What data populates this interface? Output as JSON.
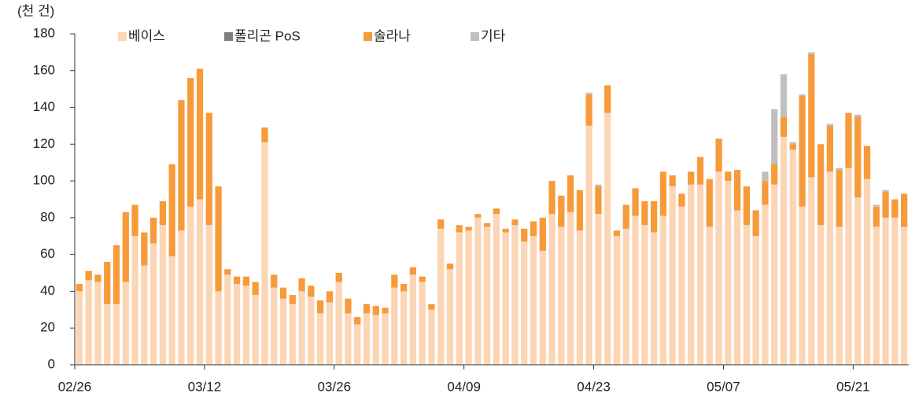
{
  "chart_data": {
    "type": "stacked_bar",
    "y_axis_label": "(천 건)",
    "categories": [
      "02/26",
      null,
      null,
      null,
      null,
      null,
      null,
      null,
      null,
      null,
      null,
      null,
      null,
      null,
      "03/12",
      null,
      null,
      null,
      null,
      null,
      null,
      null,
      null,
      null,
      null,
      null,
      null,
      null,
      "03/26",
      null,
      null,
      null,
      null,
      null,
      null,
      null,
      null,
      null,
      null,
      null,
      null,
      null,
      "04/09",
      null,
      null,
      null,
      null,
      null,
      null,
      null,
      null,
      null,
      null,
      null,
      null,
      null,
      "04/23",
      null,
      null,
      null,
      null,
      null,
      null,
      null,
      null,
      null,
      null,
      null,
      null,
      null,
      "05/07",
      null,
      null,
      null,
      null,
      null,
      null,
      null,
      null,
      null,
      null,
      null,
      null,
      null,
      "05/21",
      null,
      null,
      null,
      null,
      null
    ],
    "series": [
      {
        "name": "베이스",
        "color": "#fcd5b5",
        "values": [
          40,
          46,
          45,
          33,
          33,
          45,
          70,
          54,
          66,
          76,
          59,
          73,
          86,
          90,
          76,
          40,
          49,
          44,
          43,
          38,
          121,
          42,
          36,
          33,
          40,
          37,
          28,
          34,
          45,
          28,
          22,
          28,
          27,
          28,
          42,
          40,
          49,
          45,
          30,
          74,
          52,
          72,
          73,
          80,
          75,
          82,
          72,
          76,
          67,
          70,
          62,
          82,
          75,
          83,
          73,
          130,
          82,
          137,
          70,
          74,
          81,
          76,
          72,
          81,
          97,
          86,
          98,
          98,
          75,
          105,
          100,
          84,
          76,
          70,
          87,
          98,
          124,
          117,
          86,
          102,
          76,
          105,
          75,
          107,
          91,
          101,
          75,
          80,
          80,
          75
        ]
      },
      {
        "name": "폴리곤 PoS",
        "color": "#7f7f7f",
        "values": [
          0,
          0,
          0,
          0,
          0,
          0,
          0,
          0,
          0,
          0,
          0,
          0,
          0,
          0,
          0,
          0,
          0,
          0,
          0,
          0,
          0,
          0,
          0,
          0,
          0,
          0,
          0,
          0,
          0,
          0,
          0,
          0,
          0,
          0,
          0,
          0,
          0,
          0,
          0,
          0,
          0,
          0,
          0,
          0,
          0,
          0,
          0,
          0,
          0,
          0,
          0,
          0,
          0,
          0,
          0,
          0,
          0,
          0,
          0,
          0,
          0,
          0,
          0,
          0,
          0,
          0,
          0,
          0,
          0,
          0,
          0,
          0,
          0,
          0,
          0,
          0,
          0,
          0,
          0,
          0,
          0,
          0,
          0,
          0,
          0,
          0,
          0,
          0,
          0,
          0
        ]
      },
      {
        "name": "솔라나",
        "color": "#f79a3a",
        "values": [
          4,
          5,
          4,
          23,
          32,
          38,
          17,
          18,
          14,
          13,
          50,
          71,
          70,
          71,
          61,
          57,
          3,
          4,
          5,
          7,
          8,
          7,
          6,
          5,
          7,
          6,
          7,
          6,
          5,
          8,
          4,
          5,
          5,
          3,
          7,
          4,
          4,
          3,
          3,
          5,
          3,
          4,
          2,
          2,
          2,
          3,
          2,
          3,
          7,
          8,
          18,
          18,
          17,
          20,
          22,
          17,
          15,
          15,
          3,
          13,
          15,
          13,
          17,
          24,
          6,
          7,
          7,
          15,
          26,
          18,
          5,
          22,
          21,
          14,
          13,
          11,
          11,
          3,
          60,
          67,
          44,
          25,
          31,
          30,
          44,
          18,
          11,
          14,
          10,
          18
        ]
      },
      {
        "name": "기타",
        "color": "#bfbfbf",
        "values": [
          0,
          0,
          0,
          0,
          0,
          0,
          0,
          0,
          0,
          0,
          0,
          0,
          0,
          0,
          0,
          0,
          0,
          0,
          0,
          0,
          0,
          0,
          0,
          0,
          0,
          0,
          0,
          0,
          0,
          0,
          0,
          0,
          0,
          0,
          0,
          0,
          0,
          0,
          0,
          0,
          0,
          0,
          0,
          0,
          0,
          0,
          0,
          0,
          0,
          0,
          0,
          0,
          0,
          0,
          0,
          1,
          1,
          0,
          0,
          0,
          0,
          0,
          0,
          0,
          0,
          0,
          0,
          0,
          0,
          0,
          0,
          0,
          0,
          0,
          5,
          30,
          23,
          1,
          1,
          1,
          0,
          1,
          1,
          0,
          1,
          0,
          1,
          1,
          0,
          0
        ]
      }
    ],
    "ylim": [
      0,
      180
    ],
    "yticks": [
      0,
      20,
      40,
      60,
      80,
      100,
      120,
      140,
      160,
      180
    ]
  }
}
